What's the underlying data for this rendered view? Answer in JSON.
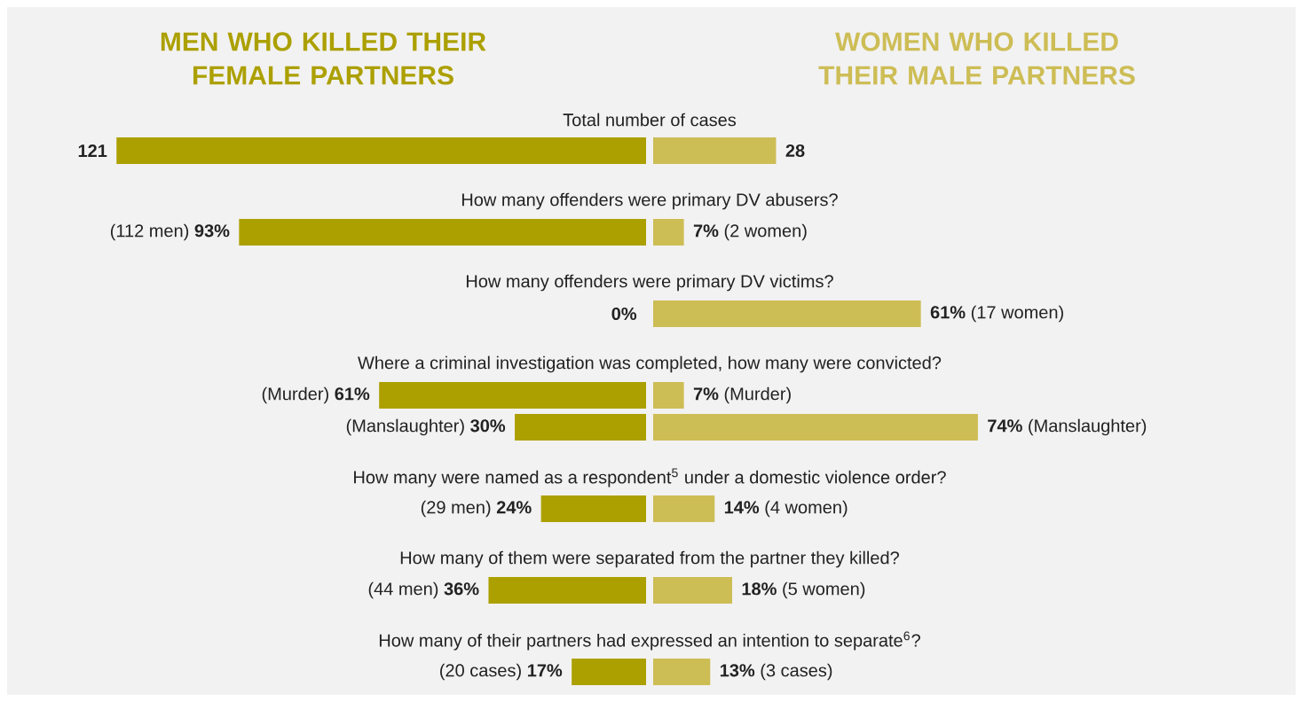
{
  "chart_data": [
    {
      "type": "bar",
      "orientation": "horizontal",
      "title": "MEN WHO KILLED THEIR FEMALE PARTNERS",
      "categories": [
        "Total number of cases",
        "How many offenders were primary DV abusers?",
        "How many offenders were primary DV victims?",
        "Where a criminal investigation was completed, how many were convicted?",
        null,
        "How many were named as a respondent$^{5}$ under a domestic violence order?",
        "How many of them were separated from the partner they killed?",
        "How many of their partners had expressed an intention to separate$^{6}$?"
      ],
      "color": "#aca000",
      "values": [
        121,
        93,
        0,
        61,
        30,
        24,
        36,
        17
      ],
      "value_labels": [
        "**121**",
        "(112 men) **93%**",
        "**0%**",
        "(Murder) **61%**",
        "(Manslaughter) **30%**",
        "(29 men) **24%**",
        "(44 men) **36%**",
        "(20 cases) **17%**"
      ]
    },
    {
      "type": "bar",
      "orientation": "horizontal",
      "title": "WOMEN WHO KILLED THEIR MALE PARTNERS",
      "categories": [
        null,
        null,
        null,
        null,
        null,
        null,
        null,
        null
      ],
      "color": "#cdbd55",
      "values": [
        28,
        7,
        61,
        7,
        74,
        14,
        18,
        13
      ],
      "value_labels": [
        "**28**",
        "**7%** (2 women)",
        "**61%** (17 women)",
        "**7%** (Murder)",
        "**74%** (Manslaughter)",
        "**14%** (4 women)",
        "**18%** (5 women)",
        "**13%** (3 cases)"
      ]
    }
  ]
}
